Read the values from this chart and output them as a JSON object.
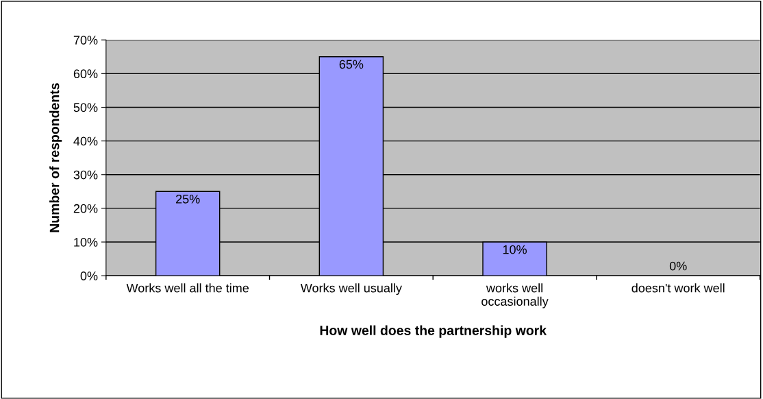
{
  "chart_data": {
    "type": "bar",
    "xlabel": "How well does the partnership work",
    "ylabel": "Number of respondents",
    "categories": [
      "Works well all the time",
      "Works well usually",
      "works well\noccasionally",
      "doesn't work well"
    ],
    "values": [
      25,
      65,
      10,
      0
    ],
    "color": "#9999ff",
    "value_labels": [
      "25%",
      "65%",
      "10%",
      "0%"
    ],
    "ylim": [
      0,
      70
    ],
    "yticks": [
      {
        "value": 0,
        "label": "0%"
      },
      {
        "value": 10,
        "label": "10%"
      },
      {
        "value": 20,
        "label": "20%"
      },
      {
        "value": 30,
        "label": "30%"
      },
      {
        "value": 40,
        "label": "40%"
      },
      {
        "value": 50,
        "label": "50%"
      },
      {
        "value": 60,
        "label": "60%"
      },
      {
        "value": 70,
        "label": "70%"
      }
    ],
    "grid": "y",
    "legend": false
  }
}
